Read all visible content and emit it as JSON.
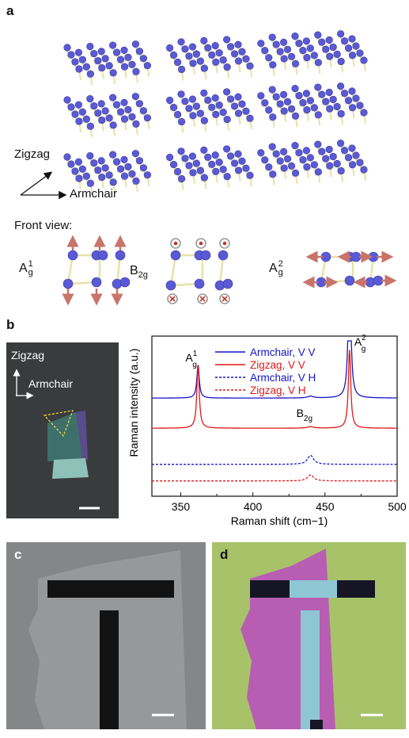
{
  "panels": {
    "a": {
      "letter": "a",
      "direction_labels": {
        "zigzag": "Zigzag",
        "armchair": "Armchair"
      },
      "front_view_label": "Front view:",
      "modes": [
        {
          "main": "A",
          "sub": "g",
          "sup": "1"
        },
        {
          "main": "B",
          "sub": "2g",
          "sup": ""
        },
        {
          "main": "A",
          "sub": "g",
          "sup": "2"
        }
      ],
      "colors": {
        "atom": "#5a5ad6",
        "bond": "#e6e3a8",
        "arrow": "#c8746a"
      }
    },
    "b": {
      "letter": "b",
      "image_labels": {
        "zigzag": "Zigzag",
        "armchair": "Armchair"
      }
    },
    "c": {
      "letter": "c"
    },
    "d": {
      "letter": "d"
    }
  },
  "chart_data": {
    "type": "line",
    "xlabel": "Raman shift (cm−1)",
    "ylabel": "Raman intensity (a.u.)",
    "xlim": [
      330,
      500
    ],
    "x_ticks": [
      "350",
      "400",
      "450",
      "500"
    ],
    "x_tick_values": [
      350,
      400,
      450,
      500
    ],
    "peak_labels": [
      {
        "main": "A",
        "sub": "g",
        "sup": "1",
        "x": 362
      },
      {
        "main": "B",
        "sub": "2g",
        "sup": "",
        "x": 440
      },
      {
        "main": "A",
        "sub": "g",
        "sup": "2",
        "x": 467
      }
    ],
    "legend_position": "top-right",
    "series": [
      {
        "name": "Armchair, V V",
        "color": "#1414c8",
        "dash": "solid",
        "baseline": 0.62,
        "peaks": [
          {
            "x": 362,
            "height": 0.22,
            "width": 1.0
          },
          {
            "x": 440,
            "height": 0.012,
            "width": 2.5
          },
          {
            "x": 467,
            "height": 1.0,
            "width": 1.0
          }
        ]
      },
      {
        "name": "Zigzag, V V",
        "color": "#e01818",
        "dash": "solid",
        "baseline": 0.42,
        "peaks": [
          {
            "x": 362,
            "height": 0.42,
            "width": 1.0
          },
          {
            "x": 440,
            "height": 0.01,
            "width": 2.5
          },
          {
            "x": 467,
            "height": 0.52,
            "width": 1.0
          }
        ]
      },
      {
        "name": "Armchair, V H",
        "color": "#1414c8",
        "dash": "dashed",
        "baseline": 0.18,
        "peaks": [
          {
            "x": 440,
            "height": 0.06,
            "width": 2.5
          }
        ]
      },
      {
        "name": "Zigzag, V H",
        "color": "#e01818",
        "dash": "dashed",
        "baseline": 0.07,
        "peaks": [
          {
            "x": 440,
            "height": 0.04,
            "width": 2.5
          }
        ]
      }
    ]
  }
}
